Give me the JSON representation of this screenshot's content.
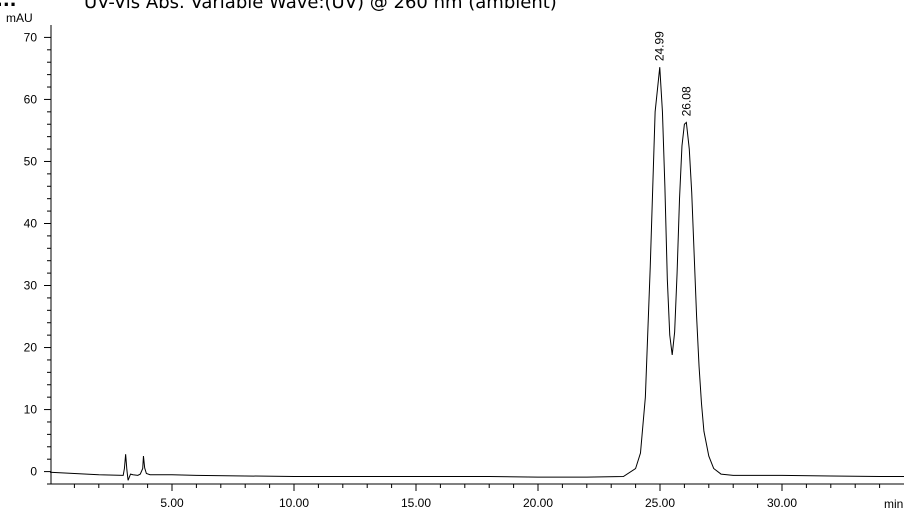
{
  "chart_data": {
    "type": "line",
    "title_marker": "...",
    "title": "UV-Vis Abs. Variable Wave:(UV) @ 260 nm (ambient)",
    "ylabel": "mAU",
    "xlabel": "min",
    "xlim": [
      0,
      35
    ],
    "ylim": [
      -2,
      72
    ],
    "grid": false,
    "x_ticks": [
      5,
      10,
      15,
      20,
      25,
      30
    ],
    "x_tick_labels": [
      "5.00",
      "10.00",
      "15.00",
      "20.00",
      "25.00",
      "30.00"
    ],
    "y_ticks": [
      0,
      10,
      20,
      30,
      40,
      50,
      60,
      70
    ],
    "y_tick_labels": [
      "0",
      "10",
      "20",
      "30",
      "40",
      "50",
      "60",
      "70"
    ],
    "peak_labels": [
      {
        "x": 24.99,
        "y": 65.2,
        "label": "24.99"
      },
      {
        "x": 26.08,
        "y": 56.3,
        "label": "26.08"
      }
    ],
    "series": [
      {
        "x": [
          0.0,
          1.0,
          2.0,
          3.0,
          3.05,
          3.1,
          3.15,
          3.2,
          3.3,
          3.4,
          3.6,
          3.7,
          3.8,
          3.83,
          3.88,
          3.95,
          4.1,
          5.0,
          6.0,
          8.0,
          10.0,
          12.0,
          14.0,
          16.0,
          18.0,
          20.0,
          22.0,
          23.5,
          24.0,
          24.2,
          24.4,
          24.6,
          24.8,
          24.99,
          25.1,
          25.2,
          25.3,
          25.4,
          25.5,
          25.6,
          25.7,
          25.8,
          25.9,
          26.0,
          26.08,
          26.2,
          26.3,
          26.4,
          26.5,
          26.6,
          26.7,
          26.8,
          27.0,
          27.2,
          27.5,
          28.0,
          29.0,
          30.0,
          32.0,
          34.0,
          35.0
        ],
        "y": [
          -0.1,
          -0.3,
          -0.5,
          -0.6,
          0.5,
          2.8,
          0.3,
          -1.4,
          -0.4,
          -0.5,
          -0.6,
          -0.4,
          0.5,
          2.5,
          0.6,
          -0.3,
          -0.5,
          -0.5,
          -0.6,
          -0.7,
          -0.8,
          -0.8,
          -0.8,
          -0.8,
          -0.8,
          -0.9,
          -0.9,
          -0.8,
          0.5,
          3.0,
          12.0,
          33.0,
          58.0,
          65.2,
          58.0,
          46.0,
          31.0,
          22.0,
          18.8,
          22.5,
          32.0,
          44.0,
          52.5,
          56.0,
          56.3,
          52.0,
          45.0,
          35.0,
          25.0,
          17.0,
          11.0,
          6.5,
          2.5,
          0.5,
          -0.4,
          -0.6,
          -0.6,
          -0.6,
          -0.7,
          -0.8,
          -0.8
        ]
      }
    ]
  }
}
